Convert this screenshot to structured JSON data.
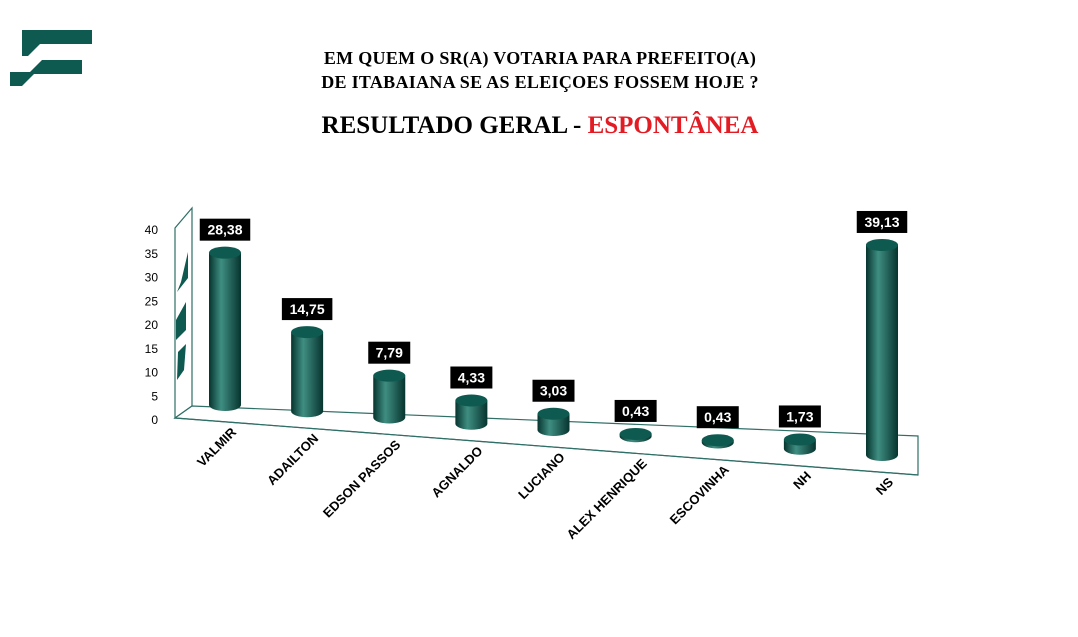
{
  "header": {
    "question_line1": "EM QUEM O SR(A) VOTARIA PARA PREFEITO(A)",
    "question_line2": "DE ITABAIANA SE AS ELEIÇOES FOSSEM HOJE ?",
    "subtitle_main": "RESULTADO GERAL - ",
    "subtitle_accent": "ESPONTÂNEA"
  },
  "colors": {
    "bar": "#0e5a50",
    "bar_light": "#3f8e82",
    "bar_dark": "#06342e",
    "accent": "#e31b23",
    "logo": "#0e5a50"
  },
  "chart_data": {
    "type": "bar",
    "title": "",
    "categories": [
      "VALMIR",
      "ADAILTON",
      "EDSON PASSOS",
      "AGNALDO",
      "LUCIANO",
      "ALEX HENRIQUE",
      "ESCOVINHA",
      "NH",
      "NS"
    ],
    "values": [
      28.38,
      14.75,
      7.79,
      4.33,
      3.03,
      0.43,
      0.43,
      1.73,
      39.13
    ],
    "value_labels": [
      "28,38",
      "14,75",
      "7,79",
      "4,33",
      "3,03",
      "0,43",
      "0,43",
      "1,73",
      "39,13"
    ],
    "yticks": [
      "0",
      "5",
      "10",
      "15",
      "20",
      "25",
      "30",
      "35",
      "40"
    ],
    "ylim": [
      0,
      40
    ],
    "xlabel": "",
    "ylabel": "",
    "grid": false,
    "legend": "none"
  }
}
